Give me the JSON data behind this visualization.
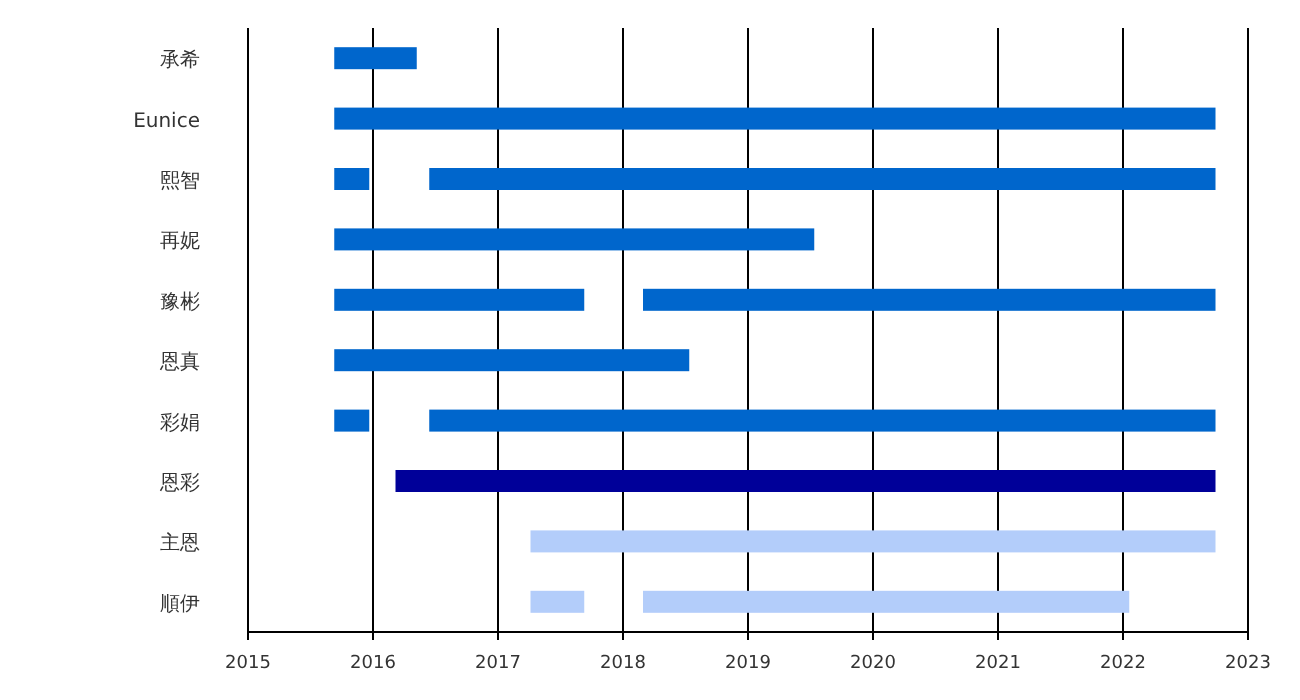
{
  "chart_data": {
    "type": "bar",
    "orientation": "horizontal",
    "grid": "x",
    "categories": [
      "承希",
      "Eunice",
      "熙智",
      "再妮",
      "豫彬",
      "恩真",
      "彩娟",
      "恩彩",
      "主恩",
      "順伊"
    ],
    "xlim": [
      2015,
      2023
    ],
    "xticks": [
      2015,
      2016,
      2017,
      2018,
      2019,
      2020,
      2021,
      2022,
      2023
    ],
    "series": [
      {
        "base": [
          2015.69,
          2015.69,
          2015.69,
          2015.69,
          2015.69,
          2015.69,
          2015.69,
          2016.18,
          2017.26,
          2017.26
        ],
        "values": [
          0.66,
          7.05,
          0.28,
          3.84,
          2.0,
          2.84,
          0.28,
          6.56,
          5.48,
          0.43
        ],
        "colors": [
          "#0066cc",
          "#0066cc",
          "#0066cc",
          "#0066cc",
          "#0066cc",
          "#0066cc",
          "#0066cc",
          "#000099",
          "#b3cdfa",
          "#b3cdfa"
        ]
      },
      {
        "base": [
          null,
          null,
          2016.45,
          null,
          2018.16,
          null,
          2016.45,
          null,
          null,
          2018.16
        ],
        "values": [
          null,
          null,
          6.29,
          null,
          4.58,
          null,
          6.29,
          null,
          null,
          3.89
        ],
        "colors": [
          null,
          null,
          "#0066cc",
          null,
          "#0066cc",
          null,
          "#0066cc",
          null,
          null,
          "#b3cdfa"
        ]
      }
    ]
  }
}
